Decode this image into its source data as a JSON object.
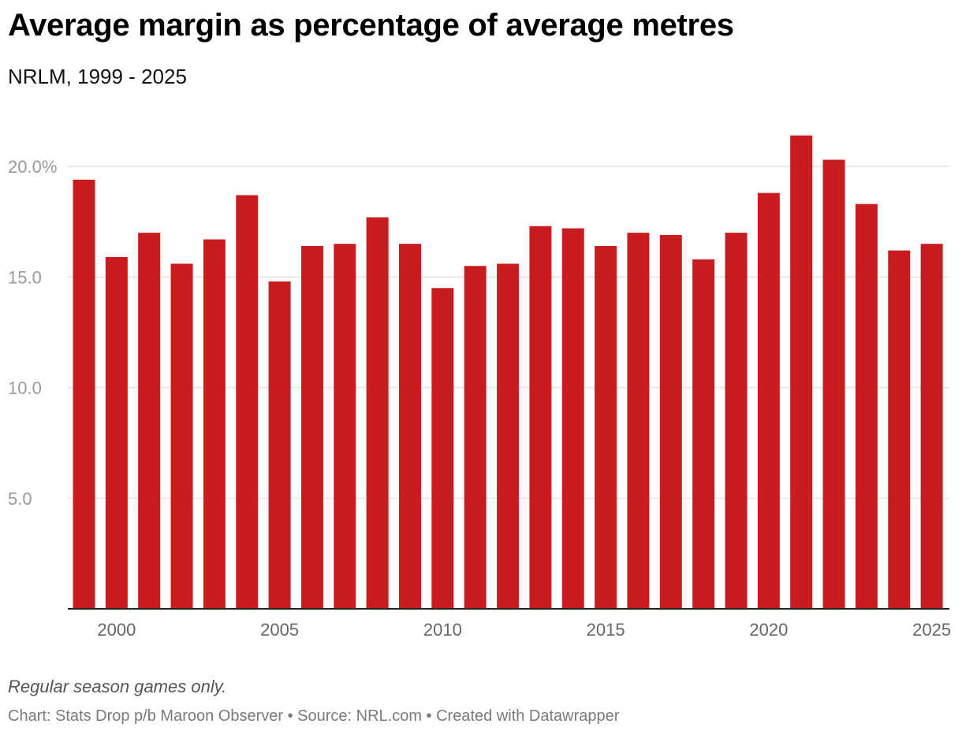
{
  "header": {
    "title": "Average margin as percentage of average metres",
    "subtitle": "NRLM, 1999 - 2025"
  },
  "footer": {
    "note": "Regular season games only.",
    "credits": "Chart: Stats Drop p/b Maroon Observer • Source: NRL.com • Created with Datawrapper"
  },
  "colors": {
    "bar": "#c91c1f",
    "gridline": "#e3e3e3",
    "axis": "#222222"
  },
  "chart_data": {
    "type": "bar",
    "title": "Average margin as percentage of average metres",
    "subtitle": "NRLM, 1999 - 2025",
    "xlabel": "",
    "ylabel": "",
    "ylim": [
      0,
      21.4
    ],
    "grid": true,
    "categories": [
      1999,
      2000,
      2001,
      2002,
      2003,
      2004,
      2005,
      2006,
      2007,
      2008,
      2009,
      2010,
      2011,
      2012,
      2013,
      2014,
      2015,
      2016,
      2017,
      2018,
      2019,
      2020,
      2021,
      2022,
      2023,
      2024,
      2025
    ],
    "values": [
      19.4,
      15.9,
      17.0,
      15.6,
      16.7,
      18.7,
      14.8,
      16.4,
      16.5,
      17.7,
      16.5,
      14.5,
      15.5,
      15.6,
      17.3,
      17.2,
      16.4,
      17.0,
      16.9,
      15.8,
      17.0,
      18.8,
      21.4,
      20.3,
      18.3,
      16.2,
      16.5
    ],
    "y_ticks": [
      {
        "value": 5,
        "label": "5.0"
      },
      {
        "value": 10,
        "label": "10.0"
      },
      {
        "value": 15,
        "label": "15.0"
      },
      {
        "value": 20,
        "label": "20.0%"
      }
    ],
    "x_ticks": [
      {
        "value": 2000,
        "label": "2000"
      },
      {
        "value": 2005,
        "label": "2005"
      },
      {
        "value": 2010,
        "label": "2010"
      },
      {
        "value": 2015,
        "label": "2015"
      },
      {
        "value": 2020,
        "label": "2020"
      },
      {
        "value": 2025,
        "label": "2025"
      }
    ]
  }
}
